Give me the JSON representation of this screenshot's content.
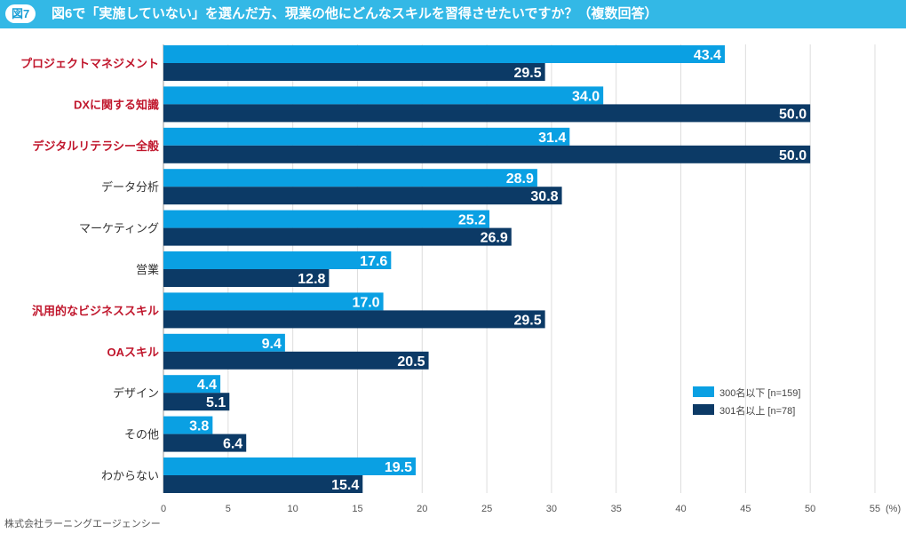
{
  "header": {
    "figure_label": "図7",
    "title": "図6で「実施していない」を選んだ方、現業の他にどんなスキルを習得させたいですか？（複数回答）"
  },
  "footer": {
    "source": "株式会社ラーニングエージェンシー"
  },
  "colors": {
    "series1": "#0aa0e3",
    "series2": "#0c3a66",
    "highlight_label": "#c0162c",
    "normal_label": "#333333",
    "header_bg": "#33b8e6"
  },
  "chart_data": {
    "type": "bar",
    "orientation": "horizontal",
    "title": "図6で「実施していない」を選んだ方、現業の他にどんなスキルを習得させたいですか？（複数回答）",
    "categories": [
      "プロジェクトマネジメント",
      "DXに関する知識",
      "デジタルリテラシー全般",
      "データ分析",
      "マーケティング",
      "営業",
      "汎用的なビジネススキル",
      "OAスキル",
      "デザイン",
      "その他",
      "わからない"
    ],
    "highlighted": [
      true,
      true,
      true,
      false,
      false,
      false,
      true,
      true,
      false,
      false,
      false
    ],
    "series": [
      {
        "name": "300名以下 [n=159]",
        "values": [
          43.4,
          34.0,
          31.4,
          28.9,
          25.2,
          17.6,
          17.0,
          9.4,
          4.4,
          3.8,
          19.5
        ]
      },
      {
        "name": "301名以上 [n=78]",
        "values": [
          29.5,
          50.0,
          50.0,
          30.8,
          26.9,
          12.8,
          29.5,
          20.5,
          5.1,
          6.4,
          15.4
        ]
      }
    ],
    "xlim": [
      0,
      55
    ],
    "xticks": [
      "0",
      "5",
      "10",
      "15",
      "20",
      "25",
      "30",
      "35",
      "40",
      "45",
      "50",
      "55"
    ],
    "x_unit": "(%)",
    "legend_position": "right-lower",
    "grid": true
  }
}
